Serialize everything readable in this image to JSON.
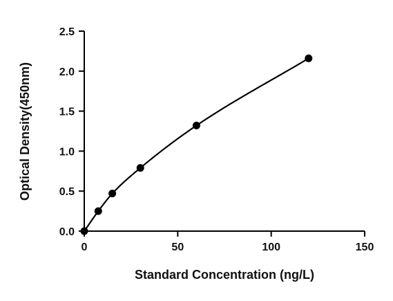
{
  "chart_data": {
    "type": "scatter",
    "title": "",
    "xlabel": "Standard Concentration (ng/L)",
    "ylabel": "Optical Density(450nm)",
    "xlim": [
      0,
      150
    ],
    "ylim": [
      0,
      2.5
    ],
    "x_ticks": [
      0,
      50,
      100,
      150
    ],
    "x_tick_labels": [
      "0",
      "50",
      "100",
      "150"
    ],
    "y_ticks": [
      0,
      0.5,
      1.0,
      1.5,
      2.0,
      2.5
    ],
    "y_tick_labels": [
      "0.0",
      "0.5",
      "1.0",
      "1.5",
      "2.0",
      "2.5"
    ],
    "grid": false,
    "legend": "none",
    "fitted_curve": true,
    "series": [
      {
        "x": [
          0,
          7.5,
          15,
          30,
          60,
          120
        ],
        "y": [
          0.0,
          0.25,
          0.47,
          0.79,
          1.32,
          2.16
        ]
      }
    ],
    "colors": {
      "marker": "#000000",
      "curve": "#000000",
      "axis": "#000000"
    }
  }
}
